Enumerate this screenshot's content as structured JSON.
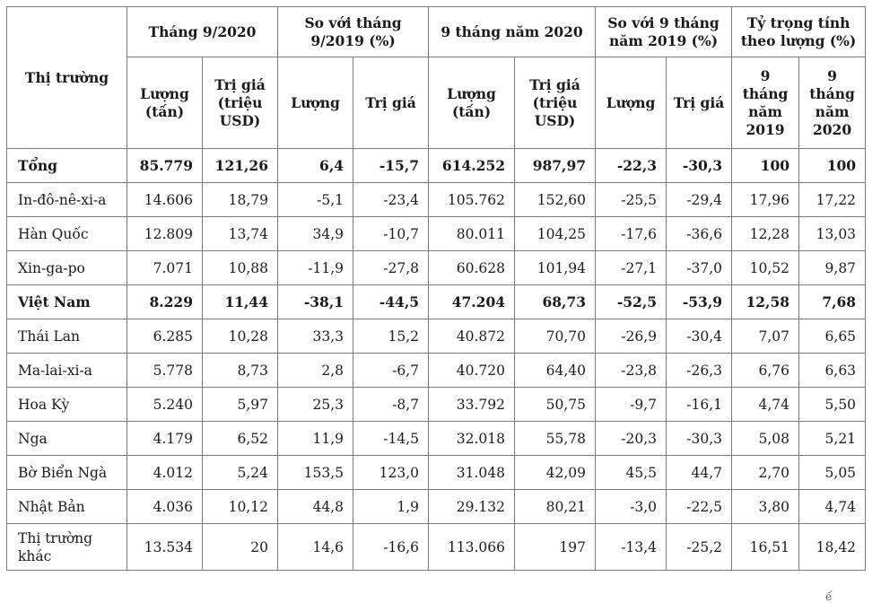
{
  "table": {
    "headers": {
      "market": "Thị trường",
      "groups": [
        "Tháng 9/2020",
        "So với tháng 9/2019 (%)",
        "9 tháng năm 2020",
        "So với 9 tháng năm 2019 (%)",
        "Tỷ trọng tính theo lượng (%)"
      ],
      "sub": [
        "Lượng (tấn)",
        "Trị giá (triệu USD)",
        "Lượng",
        "Trị giá",
        "Lượng (tấn)",
        "Trị giá (triệu USD)",
        "Lượng",
        "Trị giá",
        "9 tháng năm 2019",
        "9 tháng năm 2020"
      ]
    },
    "rows": [
      [
        "Tổng",
        "85.779",
        "121,26",
        "6,4",
        "-15,7",
        "614.252",
        "987,97",
        "-22,3",
        "-30,3",
        "100",
        "100"
      ],
      [
        "In-đô-nê-xi-a",
        "14.606",
        "18,79",
        "-5,1",
        "-23,4",
        "105.762",
        "152,60",
        "-25,5",
        "-29,4",
        "17,96",
        "17,22"
      ],
      [
        "Hàn Quốc",
        "12.809",
        "13,74",
        "34,9",
        "-10,7",
        "80.011",
        "104,25",
        "-17,6",
        "-36,6",
        "12,28",
        "13,03"
      ],
      [
        "Xin-ga-po",
        "7.071",
        "10,88",
        "-11,9",
        "-27,8",
        "60.628",
        "101,94",
        "-27,1",
        "-37,0",
        "10,52",
        "9,87"
      ],
      [
        "Việt Nam",
        "8.229",
        "11,44",
        "-38,1",
        "-44,5",
        "47.204",
        "68,73",
        "-52,5",
        "-53,9",
        "12,58",
        "7,68"
      ],
      [
        "Thái Lan",
        "6.285",
        "10,28",
        "33,3",
        "15,2",
        "40.872",
        "70,70",
        "-26,9",
        "-30,4",
        "7,07",
        "6,65"
      ],
      [
        "Ma-lai-xi-a",
        "5.778",
        "8,73",
        "2,8",
        "-6,7",
        "40.720",
        "64,40",
        "-23,8",
        "-26,3",
        "6,76",
        "6,63"
      ],
      [
        "Hoa Kỳ",
        "5.240",
        "5,97",
        "25,3",
        "-8,7",
        "33.792",
        "50,75",
        "-9,7",
        "-16,1",
        "4,74",
        "5,50"
      ],
      [
        "Nga",
        "4.179",
        "6,52",
        "11,9",
        "-14,5",
        "32.018",
        "55,78",
        "-20,3",
        "-30,3",
        "5,08",
        "5,21"
      ],
      [
        "Bờ Biển Ngà",
        "4.012",
        "5,24",
        "153,5",
        "123,0",
        "31.048",
        "42,09",
        "45,5",
        "44,7",
        "2,70",
        "5,05"
      ],
      [
        "Nhật Bản",
        "4.036",
        "10,12",
        "44,8",
        "1,9",
        "29.132",
        "80,21",
        "-3,0",
        "-22,5",
        "3,80",
        "4,74"
      ],
      [
        "Thị trường khác",
        "13.534",
        "20",
        "14,6",
        "-16,6",
        "113.066",
        "197",
        "-13,4",
        "-25,2",
        "16,51",
        "18,42"
      ]
    ],
    "bold_rows": [
      0,
      4
    ]
  },
  "footnote": "ế"
}
